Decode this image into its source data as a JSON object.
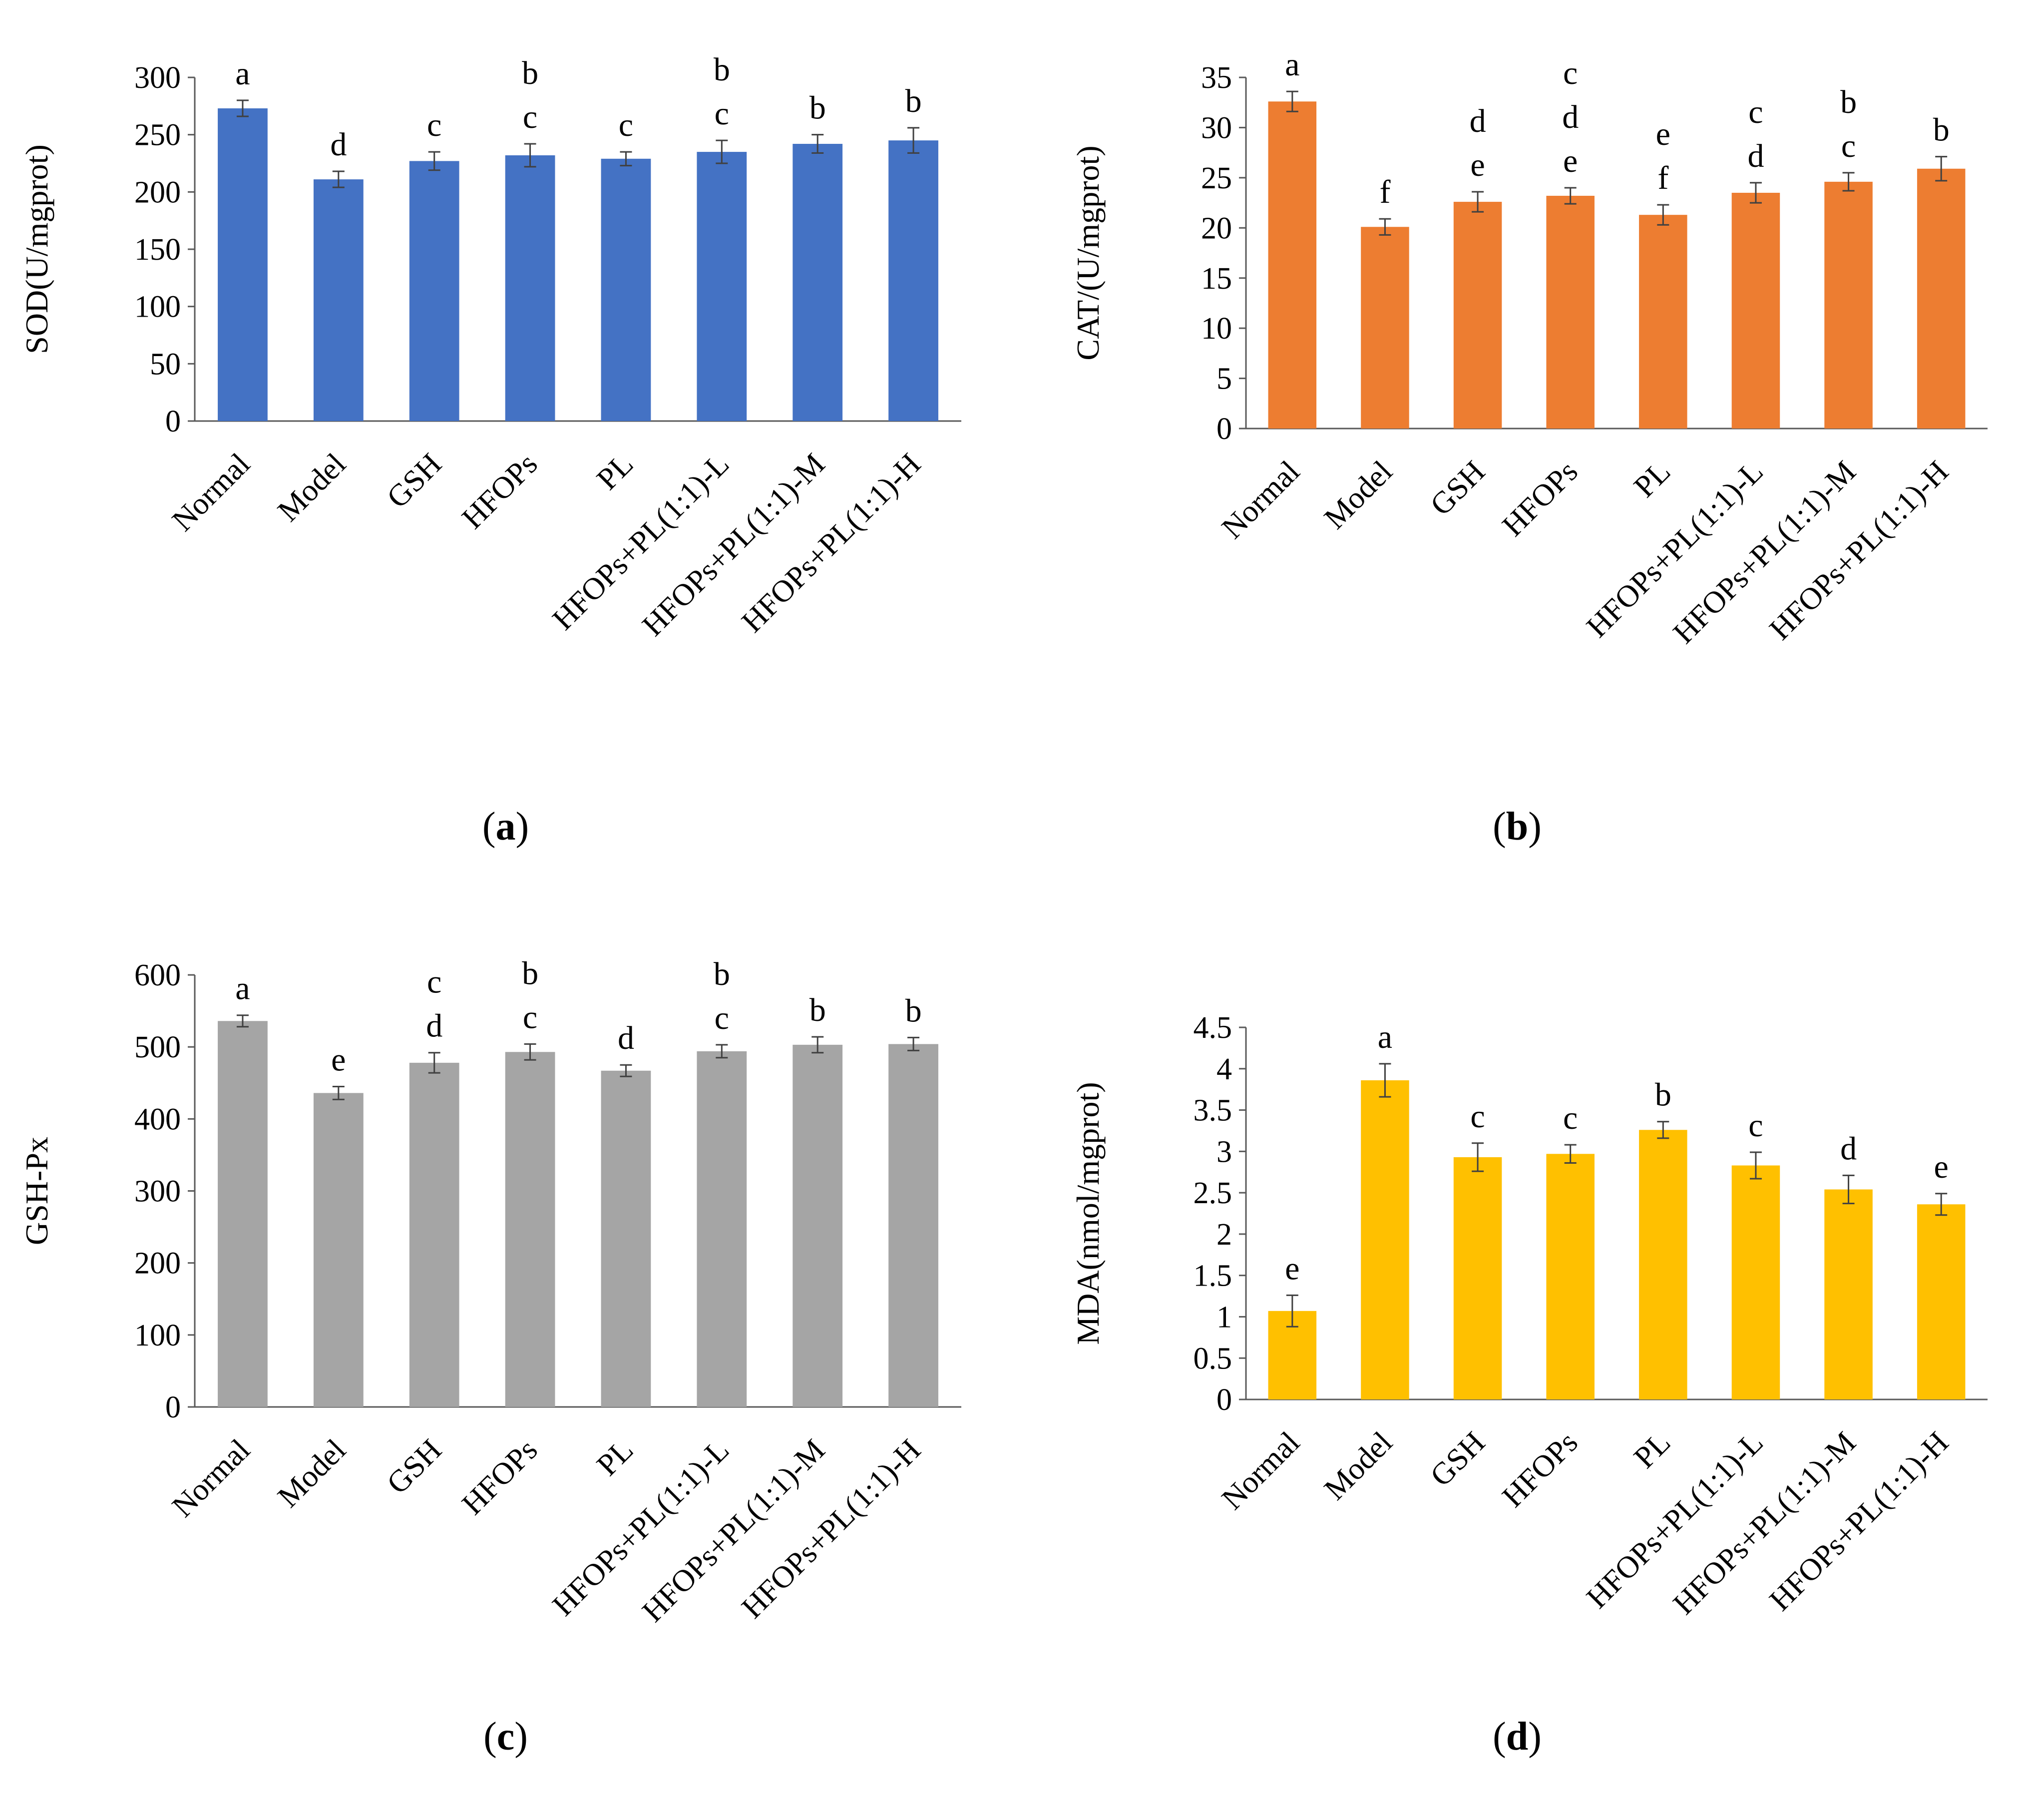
{
  "colors": {
    "a": "#4472C4",
    "b": "#ED7D31",
    "c": "#A5A5A5",
    "d": "#FFC000"
  },
  "chart_data": [
    {
      "id": "a",
      "panel_label": "a",
      "type": "bar",
      "ylabel": "SOD(U/mgprot)",
      "ylim": [
        0,
        300
      ],
      "ytick_step": 50,
      "yticks": [
        "0",
        "50",
        "100",
        "150",
        "200",
        "250",
        "300"
      ],
      "categories": [
        "Normal",
        "Model",
        "GSH",
        "HFOPs",
        "PL",
        "HFOPs+PL(1:1)-L",
        "HFOPs+PL(1:1)-M",
        "HFOPs+PL(1:1)-H"
      ],
      "values": [
        273,
        211,
        227,
        232,
        229,
        235,
        242,
        245
      ],
      "errors": [
        7,
        7,
        8,
        10,
        6,
        10,
        8,
        11
      ],
      "letters": [
        [
          "a"
        ],
        [
          "d"
        ],
        [
          "c"
        ],
        [
          "b",
          "c"
        ],
        [
          "c"
        ],
        [
          "b",
          "c"
        ],
        [
          "b"
        ],
        [
          "b"
        ]
      ],
      "color": "#4472C4"
    },
    {
      "id": "b",
      "panel_label": "b",
      "type": "bar",
      "ylabel": "CAT/(U/mgprot)",
      "ylim": [
        0,
        35
      ],
      "ytick_step": 5,
      "yticks": [
        "0",
        "5",
        "10",
        "15",
        "20",
        "25",
        "30",
        "35"
      ],
      "categories": [
        "Normal",
        "Model",
        "GSH",
        "HFOPs",
        "PL",
        "HFOPs+PL(1:1)-L",
        "HFOPs+PL(1:1)-M",
        "HFOPs+PL(1:1)-H"
      ],
      "values": [
        32.6,
        20.1,
        22.6,
        23.2,
        21.3,
        23.5,
        24.6,
        25.9
      ],
      "errors": [
        1.0,
        0.8,
        1.0,
        0.8,
        1.0,
        1.0,
        0.9,
        1.2
      ],
      "letters": [
        [
          "a"
        ],
        [
          "f"
        ],
        [
          "d",
          "e"
        ],
        [
          "c",
          "d",
          "e"
        ],
        [
          "e",
          "f"
        ],
        [
          "c",
          "d"
        ],
        [
          "b",
          "c"
        ],
        [
          "b"
        ]
      ],
      "color": "#ED7D31"
    },
    {
      "id": "c",
      "panel_label": "c",
      "type": "bar",
      "ylabel": "GSH-Px",
      "ylim": [
        0,
        600
      ],
      "ytick_step": 100,
      "yticks": [
        "0",
        "100",
        "200",
        "300",
        "400",
        "500",
        "600"
      ],
      "categories": [
        "Normal",
        "Model",
        "GSH",
        "HFOPs",
        "PL",
        "HFOPs+PL(1:1)-L",
        "HFOPs+PL(1:1)-M",
        "HFOPs+PL(1:1)-H"
      ],
      "values": [
        536,
        436,
        478,
        493,
        467,
        494,
        503,
        504
      ],
      "errors": [
        8,
        9,
        14,
        11,
        8,
        9,
        11,
        9
      ],
      "letters": [
        [
          "a"
        ],
        [
          "e"
        ],
        [
          "c",
          "d"
        ],
        [
          "b",
          "c"
        ],
        [
          "d"
        ],
        [
          "b",
          "c"
        ],
        [
          "b"
        ],
        [
          "b"
        ]
      ],
      "color": "#A5A5A5"
    },
    {
      "id": "d",
      "panel_label": "d",
      "type": "bar",
      "ylabel": "MDA(nmol/mgprot)",
      "ylim": [
        0,
        4.5
      ],
      "ytick_step": 0.5,
      "yticks": [
        "0",
        "0.5",
        "1",
        "1.5",
        "2",
        "2.5",
        "3",
        "3.5",
        "4",
        "4.5"
      ],
      "categories": [
        "Normal",
        "Model",
        "GSH",
        "HFOPs",
        "PL",
        "HFOPs+PL(1:1)-L",
        "HFOPs+PL(1:1)-M",
        "HFOPs+PL(1:1)-H"
      ],
      "values": [
        1.07,
        3.86,
        2.93,
        2.97,
        3.26,
        2.83,
        2.54,
        2.36
      ],
      "errors": [
        0.19,
        0.2,
        0.17,
        0.11,
        0.1,
        0.16,
        0.17,
        0.13
      ],
      "letters": [
        [
          "e"
        ],
        [
          "a"
        ],
        [
          "c"
        ],
        [
          "c"
        ],
        [
          "b"
        ],
        [
          "c"
        ],
        [
          "d"
        ],
        [
          "e"
        ]
      ],
      "color": "#FFC000"
    }
  ]
}
